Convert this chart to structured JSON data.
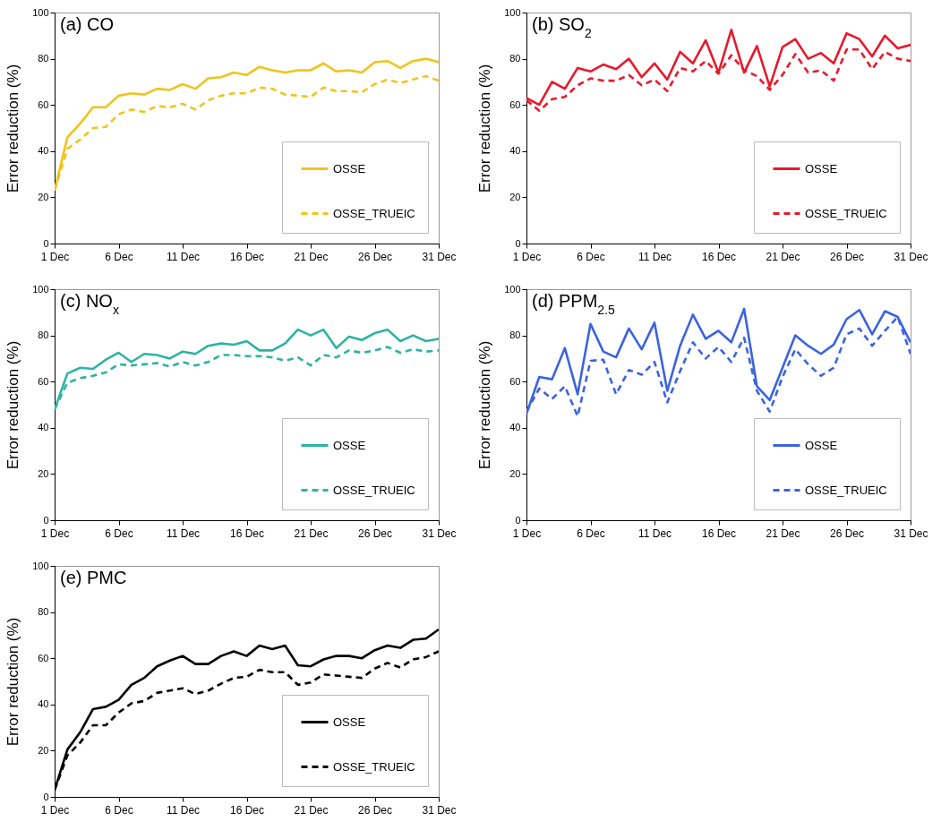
{
  "chart_data": [
    {
      "type": "line",
      "title": "(a) CO",
      "ylabel": "Error reduction (%)",
      "legend": "bottom right",
      "x": [
        "--12-01",
        "--12-02",
        "--12-03",
        "--12-04",
        "--12-05",
        "--12-06",
        "--12-07",
        "--12-08",
        "--12-09",
        "--12-10",
        "--12-11",
        "--12-12",
        "--12-13",
        "--12-14",
        "--12-15",
        "--12-16",
        "--12-17",
        "--12-18",
        "--12-19",
        "--12-20",
        "--12-21",
        "--12-22",
        "--12-23",
        "--12-24",
        "--12-25",
        "--12-26",
        "--12-27",
        "--12-28",
        "--12-29",
        "--12-30",
        "--12-31"
      ],
      "xlim": [
        "--12-01",
        "--12-31"
      ],
      "xticks": [
        {
          "value": "--12-01",
          "label": "1 Dec"
        },
        {
          "value": "--12-06",
          "label": "6 Dec"
        },
        {
          "value": "--12-11",
          "label": "11 Dec"
        },
        {
          "value": "--12-16",
          "label": "16 Dec"
        },
        {
          "value": "--12-21",
          "label": "21 Dec"
        },
        {
          "value": "--12-26",
          "label": "26 Dec"
        },
        {
          "value": "--12-31",
          "label": "31 Dec"
        }
      ],
      "ylim": [
        0,
        100
      ],
      "yticks": [
        0,
        20,
        40,
        60,
        80,
        100
      ],
      "series": [
        {
          "name": "OSSE",
          "color": "#f0c419",
          "line_style": "solid",
          "values": [
            23,
            46,
            52,
            59,
            59,
            64,
            65,
            64.5,
            67,
            66.5,
            69,
            67,
            71.5,
            72,
            74,
            73,
            76.5,
            75,
            74,
            75,
            75,
            78,
            74.5,
            75,
            74,
            78.5,
            79,
            76,
            79,
            80,
            78.5
          ]
        },
        {
          "name": "OSSE_TRUEIC",
          "color": "#f0c419",
          "line_style": "dashed",
          "values": [
            23,
            41,
            45,
            50,
            50.5,
            56,
            58,
            57,
            59.5,
            59,
            60.5,
            58,
            62,
            64,
            65,
            65,
            67.5,
            67,
            64.5,
            64,
            63.5,
            67.5,
            66,
            66,
            65.5,
            69,
            71,
            69.5,
            71,
            72.5,
            70.5
          ]
        }
      ]
    },
    {
      "type": "line",
      "title": "(b) SO$_{2}$",
      "ylabel": "Error reduction (%)",
      "legend": "bottom right",
      "x": [
        "--12-01",
        "--12-02",
        "--12-03",
        "--12-04",
        "--12-05",
        "--12-06",
        "--12-07",
        "--12-08",
        "--12-09",
        "--12-10",
        "--12-11",
        "--12-12",
        "--12-13",
        "--12-14",
        "--12-15",
        "--12-16",
        "--12-17",
        "--12-18",
        "--12-19",
        "--12-20",
        "--12-21",
        "--12-22",
        "--12-23",
        "--12-24",
        "--12-25",
        "--12-26",
        "--12-27",
        "--12-28",
        "--12-29",
        "--12-30",
        "--12-31"
      ],
      "xlim": [
        "--12-01",
        "--12-31"
      ],
      "xticks": [
        {
          "value": "--12-01",
          "label": "1 Dec"
        },
        {
          "value": "--12-06",
          "label": "6 Dec"
        },
        {
          "value": "--12-11",
          "label": "11 Dec"
        },
        {
          "value": "--12-16",
          "label": "16 Dec"
        },
        {
          "value": "--12-21",
          "label": "21 Dec"
        },
        {
          "value": "--12-26",
          "label": "26 Dec"
        },
        {
          "value": "--12-31",
          "label": "31 Dec"
        }
      ],
      "ylim": [
        0,
        100
      ],
      "yticks": [
        0,
        20,
        40,
        60,
        80,
        100
      ],
      "series": [
        {
          "name": "OSSE",
          "color": "#e8192c",
          "line_style": "solid",
          "values": [
            63,
            60,
            70,
            67,
            76,
            74.5,
            77.5,
            75.5,
            80,
            72,
            78,
            71,
            83,
            78,
            88,
            74,
            92.5,
            74,
            85.5,
            68,
            85,
            88.5,
            80,
            82.5,
            78,
            91,
            88.5,
            81,
            90,
            84.5,
            86
          ]
        },
        {
          "name": "OSSE_TRUEIC",
          "color": "#e8192c",
          "line_style": "dashed",
          "values": [
            62,
            57.5,
            62.5,
            63.5,
            68.5,
            71.5,
            70.5,
            70.5,
            73,
            68.5,
            71,
            66,
            76,
            74.5,
            79,
            73.5,
            81.5,
            75,
            72.5,
            66.5,
            73,
            82,
            74,
            75,
            70.5,
            84,
            84,
            75.5,
            83,
            80,
            79
          ]
        }
      ]
    },
    {
      "type": "line",
      "title": "(c) NO$_{x}$",
      "ylabel": "Error reduction (%)",
      "legend": "bottom right",
      "x": [
        "--12-01",
        "--12-02",
        "--12-03",
        "--12-04",
        "--12-05",
        "--12-06",
        "--12-07",
        "--12-08",
        "--12-09",
        "--12-10",
        "--12-11",
        "--12-12",
        "--12-13",
        "--12-14",
        "--12-15",
        "--12-16",
        "--12-17",
        "--12-18",
        "--12-19",
        "--12-20",
        "--12-21",
        "--12-22",
        "--12-23",
        "--12-24",
        "--12-25",
        "--12-26",
        "--12-27",
        "--12-28",
        "--12-29",
        "--12-30",
        "--12-31"
      ],
      "xlim": [
        "--12-01",
        "--12-31"
      ],
      "xticks": [
        {
          "value": "--12-01",
          "label": "1 Dec"
        },
        {
          "value": "--12-06",
          "label": "6 Dec"
        },
        {
          "value": "--12-11",
          "label": "11 Dec"
        },
        {
          "value": "--12-16",
          "label": "16 Dec"
        },
        {
          "value": "--12-21",
          "label": "21 Dec"
        },
        {
          "value": "--12-26",
          "label": "26 Dec"
        },
        {
          "value": "--12-31",
          "label": "31 Dec"
        }
      ],
      "ylim": [
        0,
        100
      ],
      "yticks": [
        0,
        20,
        40,
        60,
        80,
        100
      ],
      "series": [
        {
          "name": "OSSE",
          "color": "#2cb3a3",
          "line_style": "solid",
          "values": [
            48,
            63.5,
            66,
            65.5,
            69.5,
            72.5,
            68.5,
            72,
            71.5,
            70,
            73,
            72,
            75.5,
            76.5,
            76,
            77.5,
            73.5,
            73.5,
            76.5,
            82.5,
            80,
            82.5,
            74.5,
            79.5,
            78,
            81,
            82.5,
            77.5,
            80,
            77.5,
            78.5
          ]
        },
        {
          "name": "OSSE_TRUEIC",
          "color": "#2cb3a3",
          "line_style": "dashed",
          "values": [
            48,
            59.5,
            61.5,
            62.5,
            64,
            67.5,
            67,
            67.5,
            68,
            66.5,
            68.5,
            67,
            68.5,
            71.5,
            71.5,
            71,
            71,
            70.5,
            69,
            70.5,
            67,
            71.5,
            70.5,
            73.5,
            72.5,
            73.5,
            75,
            72.5,
            74,
            73,
            73.5
          ]
        }
      ]
    },
    {
      "type": "line",
      "title": "(d) PPM$_{2.5}$",
      "ylabel": "Error reduction (%)",
      "legend": "bottom right",
      "x": [
        "--12-01",
        "--12-02",
        "--12-03",
        "--12-04",
        "--12-05",
        "--12-06",
        "--12-07",
        "--12-08",
        "--12-09",
        "--12-10",
        "--12-11",
        "--12-12",
        "--12-13",
        "--12-14",
        "--12-15",
        "--12-16",
        "--12-17",
        "--12-18",
        "--12-19",
        "--12-20",
        "--12-21",
        "--12-22",
        "--12-23",
        "--12-24",
        "--12-25",
        "--12-26",
        "--12-27",
        "--12-28",
        "--12-29",
        "--12-30",
        "--12-31"
      ],
      "xlim": [
        "--12-01",
        "--12-31"
      ],
      "xticks": [
        {
          "value": "--12-01",
          "label": "1 Dec"
        },
        {
          "value": "--12-06",
          "label": "6 Dec"
        },
        {
          "value": "--12-11",
          "label": "11 Dec"
        },
        {
          "value": "--12-16",
          "label": "16 Dec"
        },
        {
          "value": "--12-21",
          "label": "21 Dec"
        },
        {
          "value": "--12-26",
          "label": "26 Dec"
        },
        {
          "value": "--12-31",
          "label": "31 Dec"
        }
      ],
      "ylim": [
        0,
        100
      ],
      "yticks": [
        0,
        20,
        40,
        60,
        80,
        100
      ],
      "series": [
        {
          "name": "OSSE",
          "color": "#3b63e0",
          "line_style": "solid",
          "values": [
            46,
            62,
            61,
            74.5,
            54.5,
            85,
            73,
            70.5,
            83,
            74,
            85.5,
            56,
            75.5,
            89,
            78.5,
            82,
            77,
            91.5,
            58,
            52,
            66,
            80,
            75.5,
            72,
            76,
            87,
            91,
            80.5,
            90.5,
            88,
            77
          ]
        },
        {
          "name": "OSSE_TRUEIC",
          "color": "#3b63e0",
          "line_style": "dashed",
          "values": [
            47,
            57,
            52.5,
            58,
            45,
            69,
            69.5,
            54.5,
            65,
            63,
            68.5,
            51,
            64.5,
            77,
            70,
            75,
            68.5,
            79,
            56,
            47,
            62,
            74,
            67.5,
            62.5,
            66,
            80.5,
            83,
            75.5,
            82,
            88,
            72
          ]
        }
      ]
    },
    {
      "type": "line",
      "title": "(e) PMC",
      "ylabel": "Error reduction (%)",
      "legend": "bottom right",
      "x": [
        "--12-01",
        "--12-02",
        "--12-03",
        "--12-04",
        "--12-05",
        "--12-06",
        "--12-07",
        "--12-08",
        "--12-09",
        "--12-10",
        "--12-11",
        "--12-12",
        "--12-13",
        "--12-14",
        "--12-15",
        "--12-16",
        "--12-17",
        "--12-18",
        "--12-19",
        "--12-20",
        "--12-21",
        "--12-22",
        "--12-23",
        "--12-24",
        "--12-25",
        "--12-26",
        "--12-27",
        "--12-28",
        "--12-29",
        "--12-30",
        "--12-31"
      ],
      "xlim": [
        "--12-01",
        "--12-31"
      ],
      "xticks": [
        {
          "value": "--12-01",
          "label": "1 Dec"
        },
        {
          "value": "--12-06",
          "label": "6 Dec"
        },
        {
          "value": "--12-11",
          "label": "11 Dec"
        },
        {
          "value": "--12-16",
          "label": "16 Dec"
        },
        {
          "value": "--12-21",
          "label": "21 Dec"
        },
        {
          "value": "--12-26",
          "label": "26 Dec"
        },
        {
          "value": "--12-31",
          "label": "31 Dec"
        }
      ],
      "ylim": [
        0,
        100
      ],
      "yticks": [
        0,
        20,
        40,
        60,
        80,
        100
      ],
      "series": [
        {
          "name": "OSSE",
          "color": "#000000",
          "line_style": "solid",
          "values": [
            3,
            20.5,
            28,
            38,
            39,
            42,
            48.5,
            51.5,
            56.5,
            59,
            61,
            57.5,
            57.5,
            61,
            63,
            61,
            65.5,
            64,
            65.5,
            57,
            56.5,
            59.5,
            61,
            61,
            60,
            63.5,
            65.5,
            64.5,
            68,
            68.5,
            72.5
          ]
        },
        {
          "name": "OSSE_TRUEIC",
          "color": "#000000",
          "line_style": "dashed",
          "values": [
            3,
            18,
            23.5,
            31,
            31,
            36.5,
            40.5,
            41.5,
            45,
            46,
            47,
            44.5,
            46,
            49,
            51.5,
            52,
            55,
            54,
            54,
            48.5,
            49.5,
            53,
            52.5,
            52,
            51.5,
            55.5,
            58,
            56,
            59.5,
            60.5,
            63
          ]
        }
      ]
    }
  ]
}
